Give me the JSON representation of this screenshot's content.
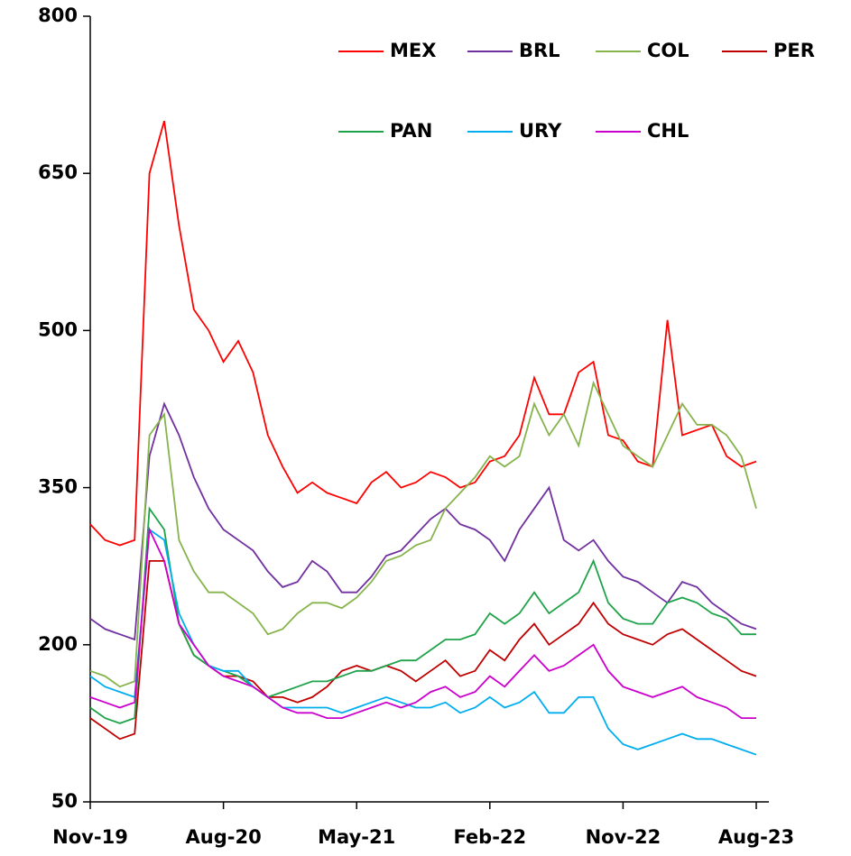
{
  "chart_data": {
    "type": "line",
    "categories": [
      "Nov-19",
      null,
      null,
      null,
      null,
      null,
      null,
      null,
      null,
      "Aug-20",
      null,
      null,
      null,
      null,
      null,
      null,
      null,
      null,
      "May-21",
      null,
      null,
      null,
      null,
      null,
      null,
      null,
      null,
      "Feb-22",
      null,
      null,
      null,
      null,
      null,
      null,
      null,
      null,
      "Nov-22",
      null,
      null,
      null,
      null,
      null,
      null,
      null,
      null,
      "Aug-23"
    ],
    "ylim": [
      50,
      800
    ],
    "yticks": [
      50,
      200,
      350,
      500,
      650,
      800
    ],
    "grid": false,
    "legend": "top-right",
    "series": [
      {
        "name": "MEX",
        "color": "#ff0000",
        "values": [
          315,
          300,
          295,
          300,
          650,
          700,
          600,
          520,
          500,
          470,
          490,
          460,
          400,
          370,
          345,
          355,
          345,
          340,
          335,
          355,
          365,
          350,
          355,
          365,
          360,
          350,
          355,
          375,
          380,
          400,
          455,
          420,
          420,
          460,
          470,
          400,
          395,
          375,
          370,
          510,
          400,
          405,
          410,
          380,
          370,
          375
        ]
      },
      {
        "name": "BRL",
        "color": "#7030a0",
        "values": [
          225,
          215,
          210,
          205,
          380,
          430,
          400,
          360,
          330,
          310,
          300,
          290,
          270,
          255,
          260,
          280,
          270,
          250,
          250,
          265,
          285,
          290,
          305,
          320,
          330,
          315,
          310,
          300,
          280,
          310,
          330,
          350,
          300,
          290,
          300,
          280,
          265,
          260,
          250,
          240,
          260,
          255,
          240,
          230,
          220,
          215
        ]
      },
      {
        "name": "COL",
        "color": "#86b34c",
        "values": [
          175,
          170,
          160,
          165,
          400,
          420,
          300,
          270,
          250,
          250,
          240,
          230,
          210,
          215,
          230,
          240,
          240,
          235,
          245,
          260,
          280,
          285,
          295,
          300,
          330,
          345,
          360,
          380,
          370,
          380,
          430,
          400,
          420,
          390,
          450,
          420,
          390,
          380,
          370,
          400,
          430,
          410,
          410,
          400,
          380,
          330
        ]
      },
      {
        "name": "PER",
        "color": "#c00000",
        "values": [
          130,
          120,
          110,
          115,
          280,
          280,
          220,
          190,
          180,
          170,
          170,
          165,
          150,
          150,
          145,
          150,
          160,
          175,
          180,
          175,
          180,
          175,
          165,
          175,
          185,
          170,
          175,
          195,
          185,
          205,
          220,
          200,
          210,
          220,
          240,
          220,
          210,
          205,
          200,
          210,
          215,
          205,
          195,
          185,
          175,
          170
        ]
      },
      {
        "name": "PAN",
        "color": "#1fa34a",
        "values": [
          140,
          130,
          125,
          130,
          330,
          310,
          220,
          190,
          180,
          175,
          170,
          160,
          150,
          155,
          160,
          165,
          165,
          170,
          175,
          175,
          180,
          185,
          185,
          195,
          205,
          205,
          210,
          230,
          220,
          230,
          250,
          230,
          240,
          250,
          280,
          240,
          225,
          220,
          220,
          240,
          245,
          240,
          230,
          225,
          210,
          210
        ]
      },
      {
        "name": "URY",
        "color": "#00aeef",
        "values": [
          170,
          160,
          155,
          150,
          310,
          300,
          230,
          200,
          180,
          175,
          175,
          160,
          150,
          140,
          140,
          140,
          140,
          135,
          140,
          145,
          150,
          145,
          140,
          140,
          145,
          135,
          140,
          150,
          140,
          145,
          155,
          135,
          135,
          150,
          150,
          120,
          105,
          100,
          105,
          110,
          115,
          110,
          110,
          105,
          100,
          95
        ]
      },
      {
        "name": "CHL",
        "color": "#cc00cc",
        "values": [
          150,
          145,
          140,
          145,
          310,
          280,
          220,
          200,
          180,
          170,
          165,
          160,
          150,
          140,
          135,
          135,
          130,
          130,
          135,
          140,
          145,
          140,
          145,
          155,
          160,
          150,
          155,
          170,
          160,
          175,
          190,
          175,
          180,
          190,
          200,
          175,
          160,
          155,
          150,
          155,
          160,
          150,
          145,
          140,
          130,
          130
        ]
      }
    ]
  }
}
